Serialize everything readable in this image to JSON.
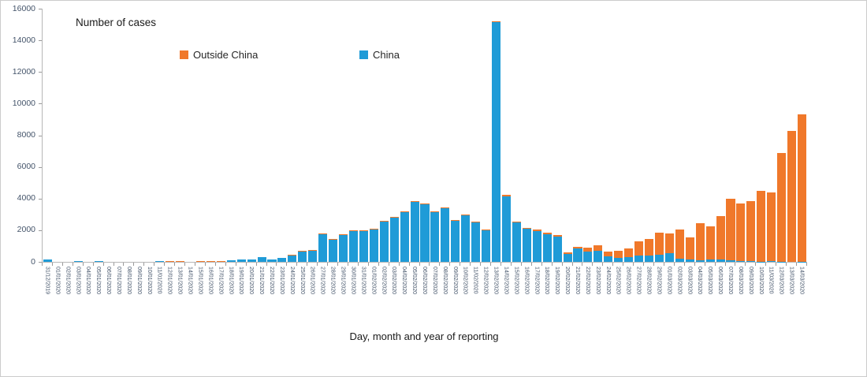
{
  "chart_data": {
    "type": "bar",
    "stacked": true,
    "title": "Number of cases",
    "xlabel": "Day, month and year of reporting",
    "ylabel": "",
    "ylim": [
      0,
      16000
    ],
    "yticks": [
      0,
      2000,
      4000,
      6000,
      8000,
      10000,
      12000,
      14000,
      16000
    ],
    "grid": false,
    "legend_position": "top-inside",
    "categories": [
      "31/12/2019",
      "01/01/2020",
      "02/01/2020",
      "03/01/2020",
      "04/01/2020",
      "05/01/2020",
      "06/01/2020",
      "07/01/2020",
      "08/01/2020",
      "09/01/2020",
      "10/01/2020",
      "11/01/2020",
      "12/01/2020",
      "13/01/2020",
      "14/01/2020",
      "15/01/2020",
      "16/01/2020",
      "17/01/2020",
      "18/01/2020",
      "19/01/2020",
      "20/01/2020",
      "21/01/2020",
      "22/01/2020",
      "23/01/2020",
      "24/01/2020",
      "25/01/2020",
      "26/01/2020",
      "27/01/2020",
      "28/01/2020",
      "29/01/2020",
      "30/01/2020",
      "31/01/2020",
      "01/02/2020",
      "02/02/2020",
      "03/02/2020",
      "04/02/2020",
      "05/02/2020",
      "06/02/2020",
      "07/02/2020",
      "08/02/2020",
      "09/02/2020",
      "10/02/2020",
      "11/02/2020",
      "12/02/2020",
      "13/02/2020",
      "14/02/2020",
      "15/02/2020",
      "16/02/2020",
      "17/02/2020",
      "18/02/2020",
      "19/02/2020",
      "20/02/2020",
      "21/02/2020",
      "22/02/2020",
      "23/02/2020",
      "24/02/2020",
      "25/02/2020",
      "26/02/2020",
      "27/02/2020",
      "28/02/2020",
      "29/02/2020",
      "01/03/2020",
      "02/03/2020",
      "03/03/2020",
      "04/03/2020",
      "05/03/2020",
      "06/03/2020",
      "07/03/2020",
      "08/03/2020",
      "09/03/2020",
      "10/03/2020",
      "11/03/2020",
      "12/03/2020",
      "13/03/2020",
      "14/03/2020"
    ],
    "series": [
      {
        "name": "China",
        "color": "#1F9BD7",
        "values": [
          130,
          0,
          0,
          60,
          0,
          60,
          0,
          0,
          0,
          0,
          0,
          40,
          0,
          0,
          0,
          0,
          0,
          0,
          90,
          140,
          150,
          300,
          140,
          250,
          445,
          675,
          750,
          1750,
          1430,
          1700,
          1960,
          1950,
          2080,
          2570,
          2820,
          3180,
          3805,
          3675,
          3125,
          3400,
          2605,
          2985,
          2520,
          1985,
          15150,
          4155,
          2470,
          2090,
          1960,
          1770,
          1615,
          480,
          825,
          625,
          675,
          345,
          245,
          295,
          380,
          410,
          430,
          560,
          210,
          130,
          120,
          145,
          145,
          100,
          45,
          45,
          20,
          30,
          25,
          10,
          20
        ]
      },
      {
        "name": "Outside China",
        "color": "#F0782A",
        "values": [
          0,
          0,
          0,
          0,
          0,
          0,
          0,
          0,
          0,
          0,
          0,
          0,
          30,
          30,
          0,
          30,
          30,
          40,
          0,
          0,
          10,
          10,
          10,
          10,
          15,
          15,
          20,
          30,
          30,
          30,
          30,
          30,
          30,
          30,
          30,
          30,
          30,
          30,
          55,
          25,
          30,
          30,
          35,
          40,
          60,
          60,
          85,
          70,
          100,
          90,
          80,
          95,
          130,
          280,
          360,
          280,
          460,
          575,
          905,
          1040,
          1400,
          1220,
          1815,
          1430,
          2320,
          2075,
          2735,
          3870,
          3625,
          3795,
          4475,
          4335,
          6845,
          8290,
          9320
        ]
      }
    ]
  },
  "legend": {
    "outside_china_label": "Outside China",
    "china_label": "China"
  },
  "colors": {
    "china_bar": "#1F9BD7",
    "outside_china_bar": "#F0782A",
    "axis_line": "#b7b7b7",
    "tick_mark": "#9a9a9a",
    "tick_label_text": "#44546A",
    "title_text": "#1a1a1a"
  }
}
